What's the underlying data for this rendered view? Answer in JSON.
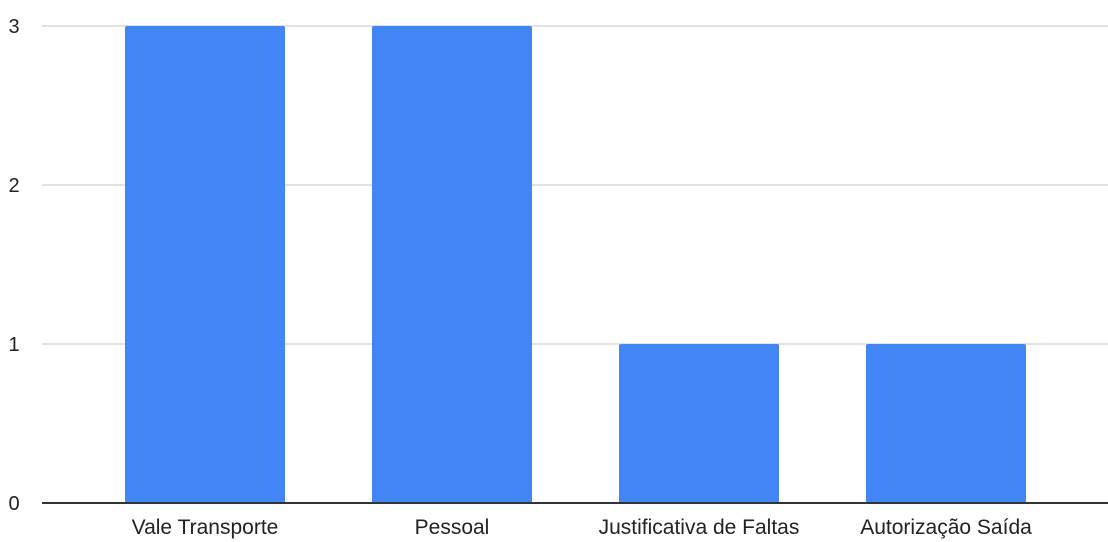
{
  "chart_data": {
    "type": "bar",
    "title": "",
    "xlabel": "",
    "ylabel": "",
    "categories": [
      "Vale Transporte",
      "Pessoal",
      "Justificativa de Faltas",
      "Autorização Saída"
    ],
    "values": [
      3,
      3,
      1,
      1
    ],
    "ylim": [
      0,
      3
    ],
    "yticks": [
      0,
      1,
      2,
      3
    ],
    "grid": true,
    "legend": "none",
    "colors": {
      "bar": "#4285f4",
      "grid": "#d9d9d9",
      "axis": "#333333",
      "text": "#222222"
    }
  }
}
